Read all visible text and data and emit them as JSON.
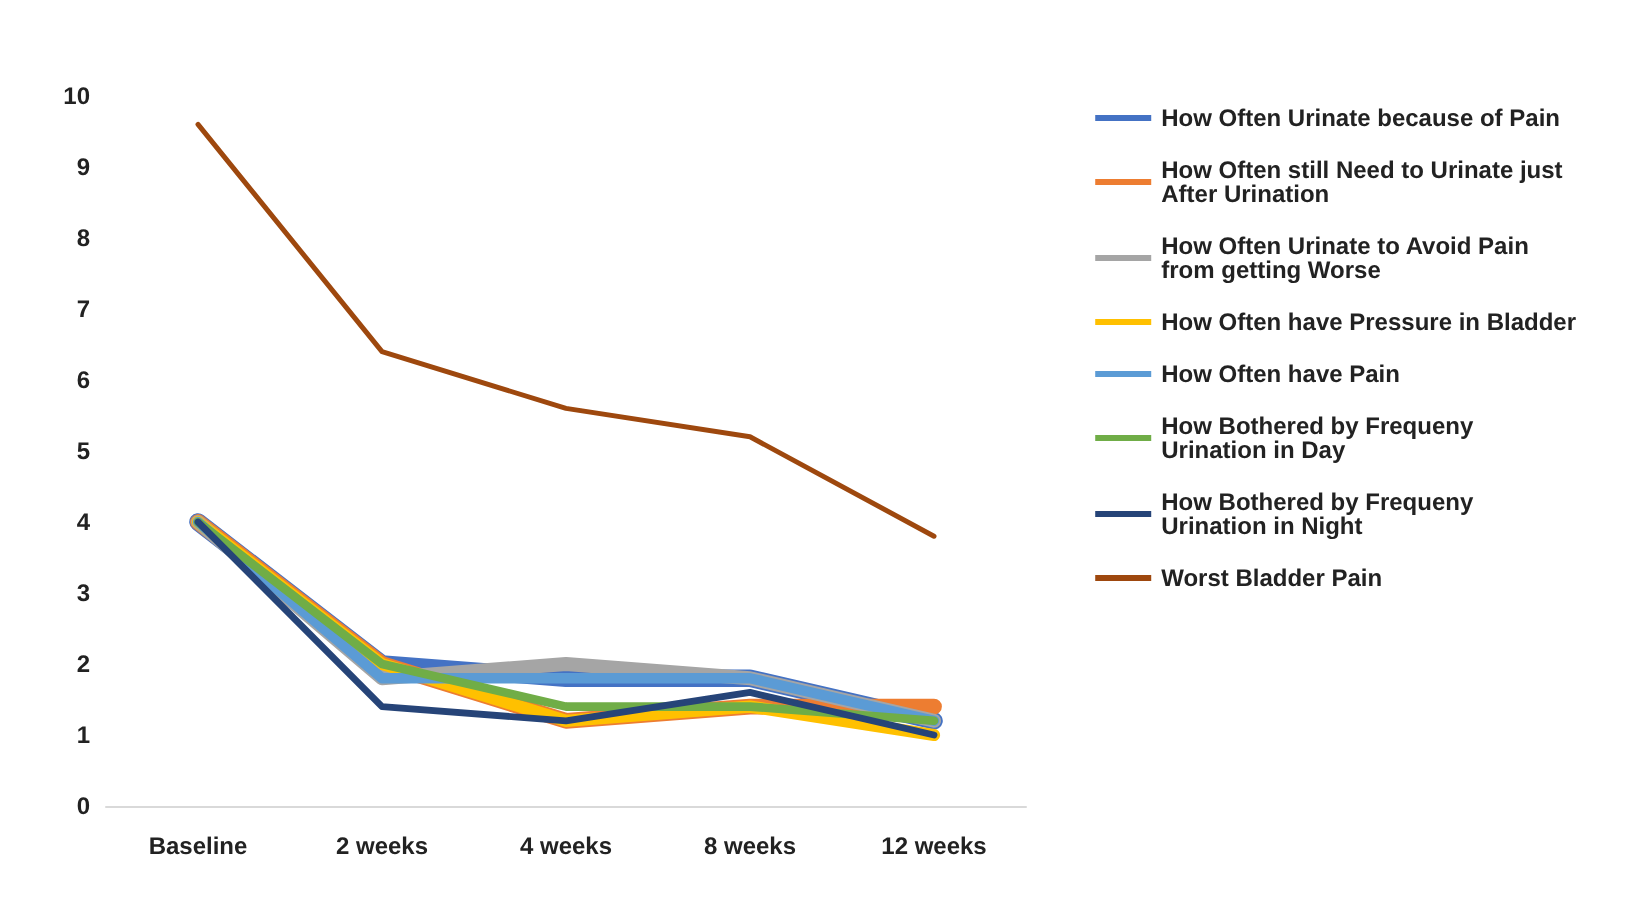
{
  "chart_data": {
    "type": "line",
    "categories": [
      "Baseline",
      "2 weeks",
      "4 weeks",
      "8 weeks",
      "12 weeks"
    ],
    "ylim": [
      0,
      10
    ],
    "yticks": [
      0,
      1,
      2,
      3,
      4,
      5,
      6,
      7,
      8,
      9,
      10
    ],
    "grid": false,
    "legend": "right",
    "marker": "none",
    "line_style": "solid",
    "series": [
      {
        "name": "How Often Urinate because of Pain",
        "color": "#4472c4",
        "values": [
          4,
          2,
          1.8,
          1.8,
          1.2
        ]
      },
      {
        "name": "How Often still Need to Urinate just After Urination",
        "color": "#ed7d31",
        "values": [
          4,
          2,
          1.2,
          1.4,
          1.4
        ]
      },
      {
        "name": "How Often Urinate to Avoid Pain from getting Worse",
        "color": "#a5a5a5",
        "values": [
          4,
          1.8,
          2,
          1.8,
          1.2
        ]
      },
      {
        "name": "How Often have Pressure in Bladder",
        "color": "#ffc000",
        "values": [
          4,
          2,
          1.2,
          1.4,
          1
        ]
      },
      {
        "name": "How Often have Pain",
        "color": "#5b9bd5",
        "values": [
          4,
          1.8,
          1.8,
          1.8,
          1.2
        ]
      },
      {
        "name": "How Bothered by Frequeny Urination in Day",
        "color": "#70ad47",
        "values": [
          4,
          2,
          1.4,
          1.4,
          1.2
        ]
      },
      {
        "name": "How Bothered by Frequeny Urination in Night",
        "color": "#264478",
        "values": [
          4,
          1.4,
          1.2,
          1.6,
          1
        ]
      },
      {
        "name": "Worst Bladder Pain",
        "color": "#9e480e",
        "values": [
          9.6,
          6.4,
          5.6,
          5.2,
          3.8
        ]
      }
    ]
  }
}
